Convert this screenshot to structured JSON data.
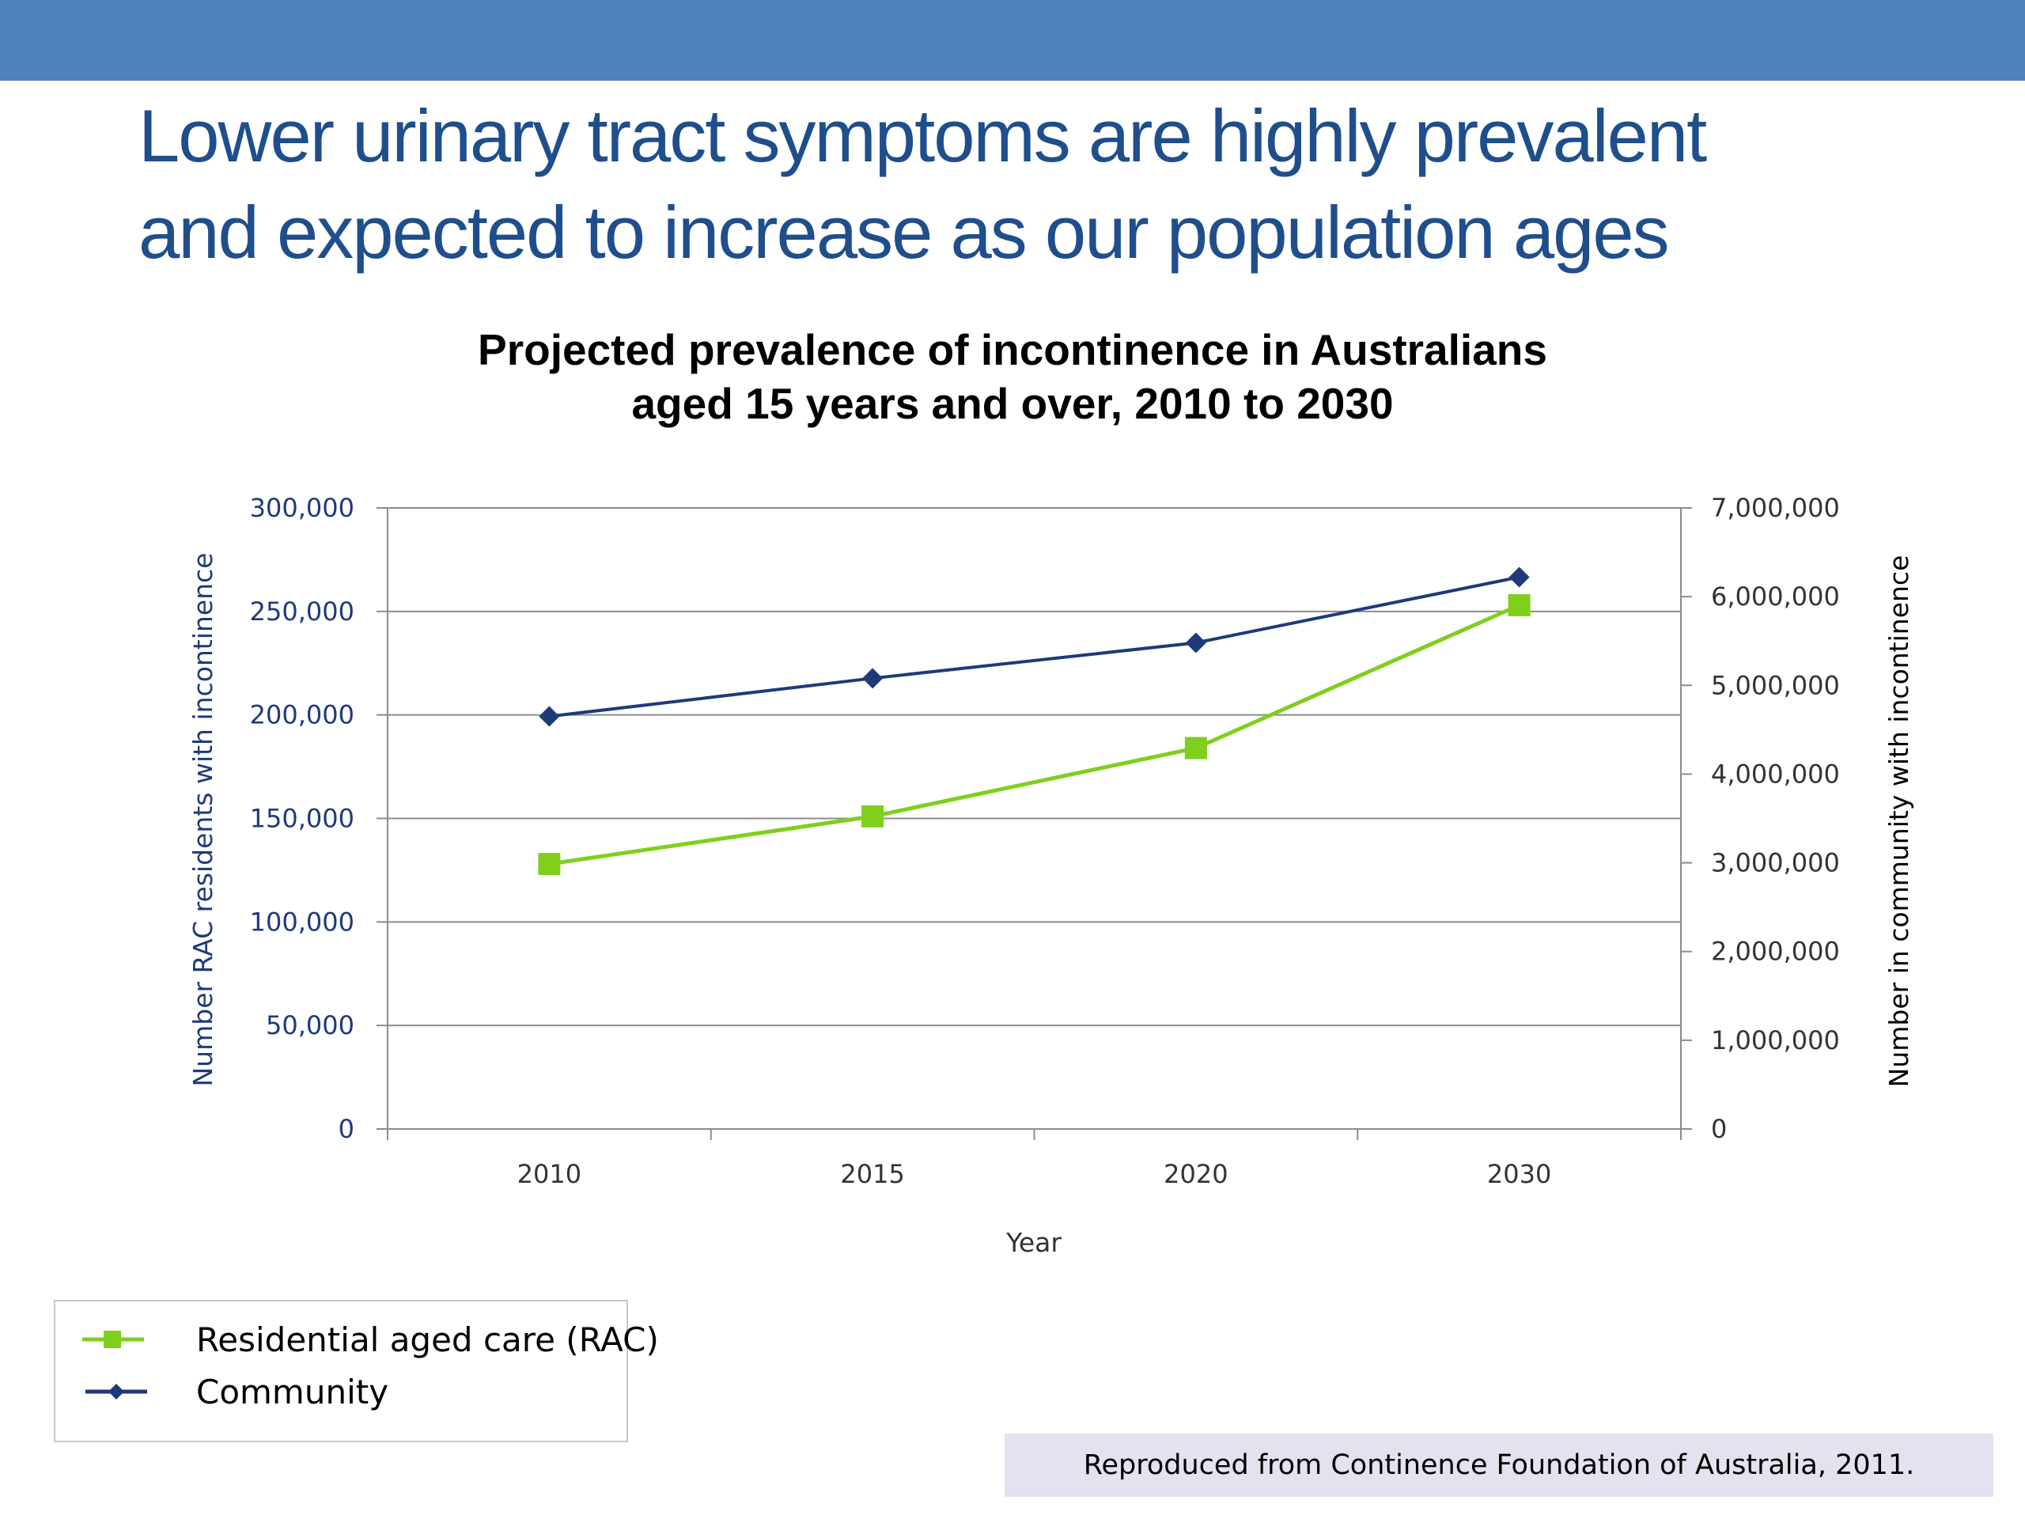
{
  "header": {
    "bar_color": "#4f81bd"
  },
  "slide": {
    "title_line_1": "Lower urinary tract symptoms are highly prevalent",
    "title_line_2": "and expected to increase as our population ages",
    "title_color": "#1f4e8c"
  },
  "source": {
    "text": "Reproduced from Continence Foundation of Australia, 2011."
  },
  "chart_data": {
    "type": "line",
    "title_line_1": "Projected prevalence of incontinence in Australians",
    "title_line_2": "aged 15 years and over, 2010 to 2030",
    "xlabel": "Year",
    "ylabel_left": "Number RAC residents with incontinence",
    "ylabel_right": "Number in community with incontinence",
    "categories": [
      "2010",
      "2015",
      "2020",
      "2030"
    ],
    "y_left": {
      "lim": [
        0,
        300000
      ],
      "ticks": [
        "0",
        "50,000",
        "100,000",
        "150,000",
        "200,000",
        "250,000",
        "300,000"
      ]
    },
    "y_right": {
      "lim": [
        0,
        7000000
      ],
      "ticks": [
        "0",
        "1,000,000",
        "2,000,000",
        "3,000,000",
        "4,000,000",
        "5,000,000",
        "6,000,000",
        "7,000,000"
      ]
    },
    "grid": true,
    "legend_position": "bottom-left",
    "series": [
      {
        "name": "Residential aged care (RAC)",
        "axis": "left",
        "marker": "square",
        "color": "#7fcf1d",
        "values": [
          128000,
          151000,
          184000,
          253000
        ]
      },
      {
        "name": "Community",
        "axis": "right",
        "marker": "diamond",
        "color": "#1f3a7a",
        "values": [
          4650000,
          5080000,
          5480000,
          6220000
        ]
      }
    ]
  }
}
